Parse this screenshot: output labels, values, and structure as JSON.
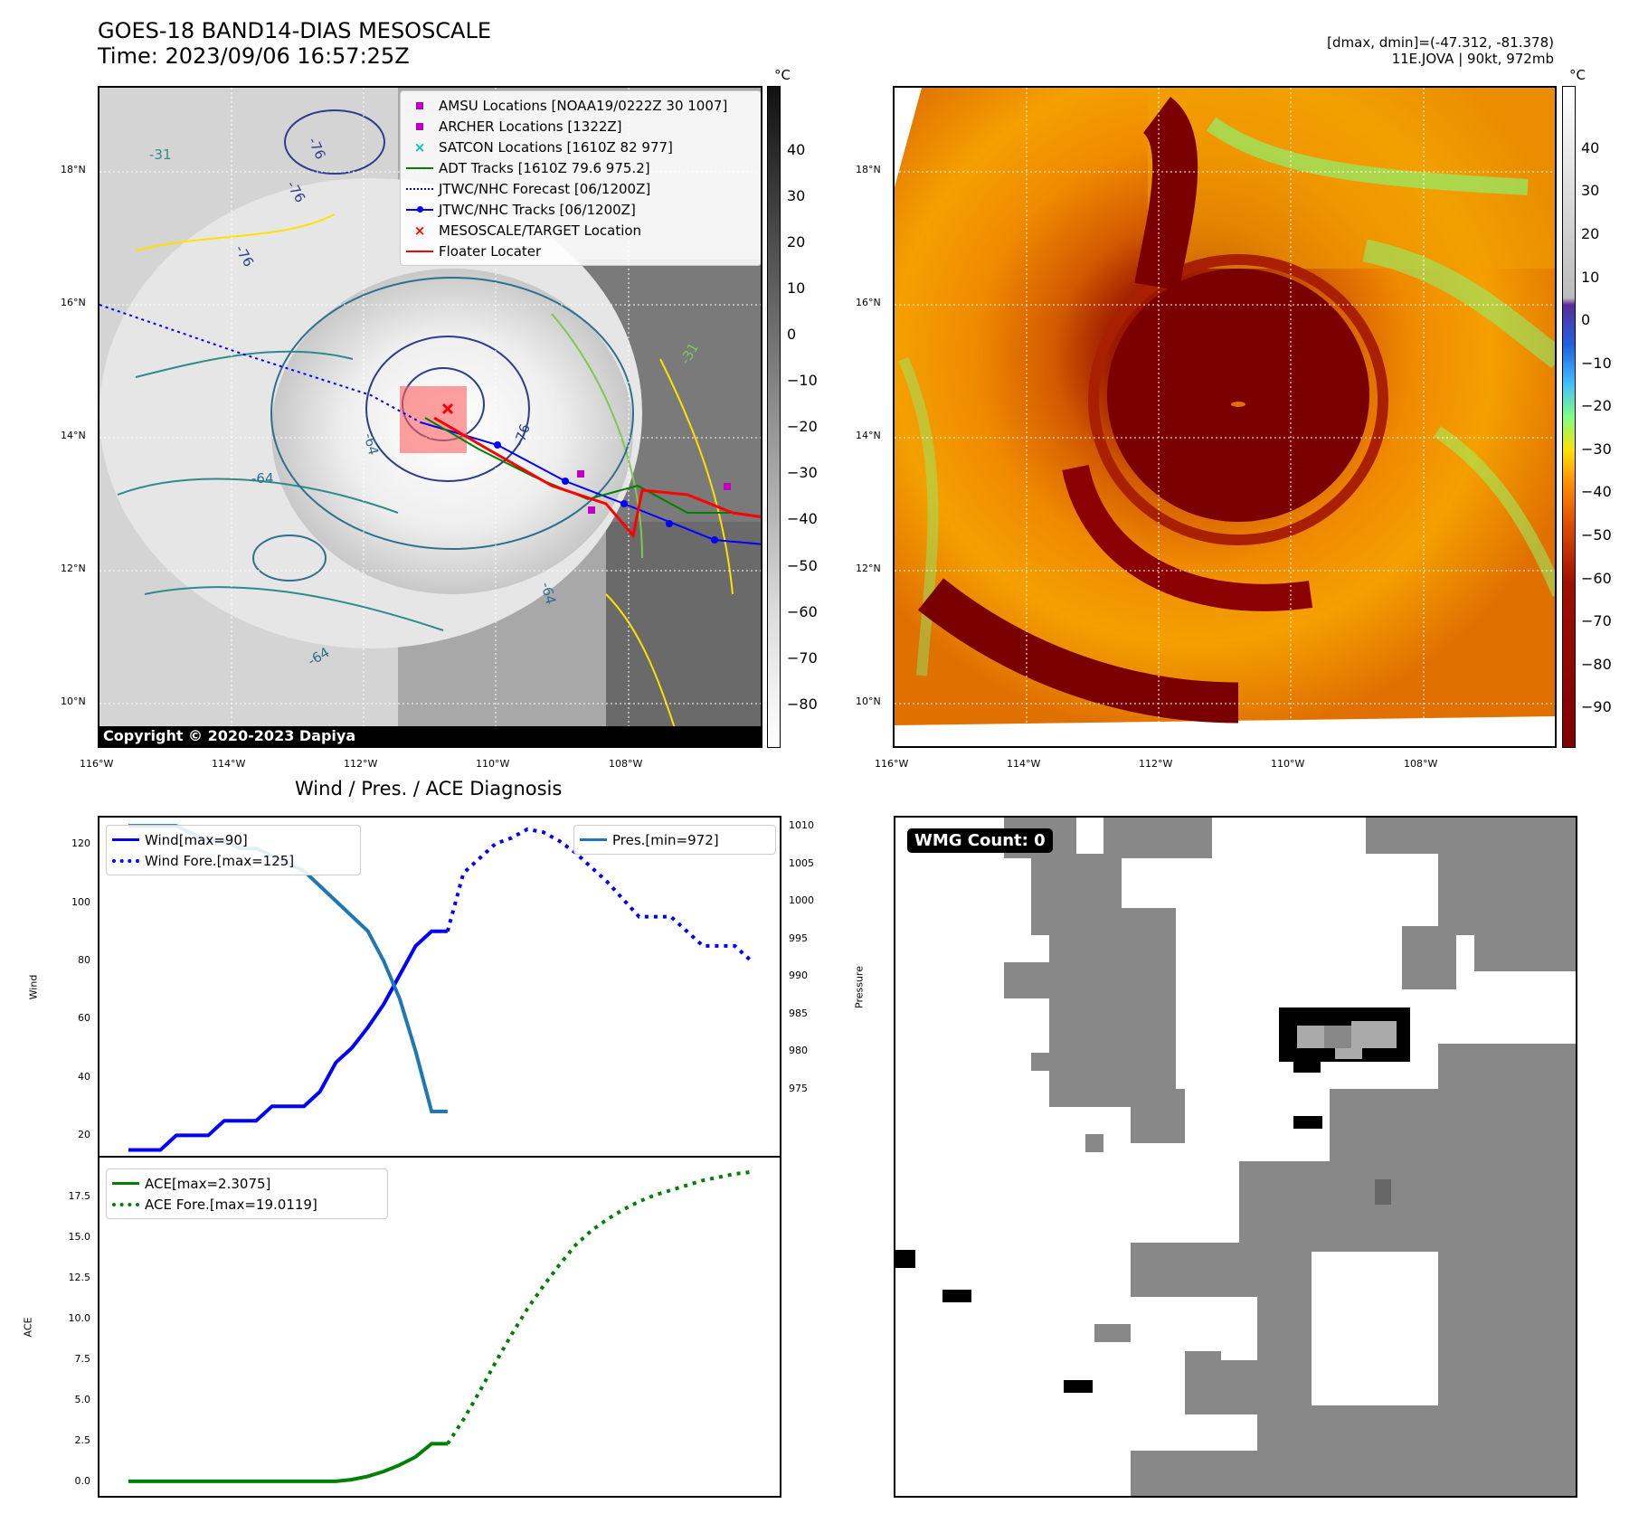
{
  "header": {
    "title_line1": "GOES-18 BAND14-DIAS MESOSCALE",
    "title_line2": "Time: 2023/09/06 16:57:25Z",
    "right_line1": "[dmax, dmin]=(-47.312, -81.378)",
    "right_line2": "11E.JOVA | 90kt, 972mb"
  },
  "map_axes": {
    "lat_labels": [
      "18°N",
      "16°N",
      "14°N",
      "12°N",
      "10°N"
    ],
    "lon_labels": [
      "116°W",
      "114°W",
      "112°W",
      "110°W",
      "108°W"
    ]
  },
  "colorbar_left": {
    "unit": "°C",
    "ticks": [
      "40",
      "30",
      "20",
      "10",
      "0",
      "−10",
      "−20",
      "−30",
      "−40",
      "−50",
      "−60",
      "−70",
      "−80"
    ]
  },
  "colorbar_right": {
    "unit": "°C",
    "ticks": [
      "40",
      "30",
      "20",
      "10",
      "0",
      "−10",
      "−20",
      "−30",
      "−40",
      "−50",
      "−60",
      "−70",
      "−80",
      "−90"
    ]
  },
  "legend_track": [
    {
      "label": "AMSU Locations [NOAA19/0222Z 30 1007]",
      "symbol": "square",
      "color": "#c000c0"
    },
    {
      "label": "ARCHER Locations [1322Z]",
      "symbol": "square",
      "color": "#c000c0"
    },
    {
      "label": "SATCON Locations [1610Z 82 977]",
      "symbol": "x",
      "color": "#00c0c0"
    },
    {
      "label": "ADT Tracks [1610Z 79.6 975.2]",
      "symbol": "line",
      "color": "#008000"
    },
    {
      "label": "JTWC/NHC Forecast [06/1200Z]",
      "symbol": "dotted",
      "color": "#0000ff"
    },
    {
      "label": "JTWC/NHC Tracks [06/1200Z]",
      "symbol": "line-dot",
      "color": "#0000ff"
    },
    {
      "label": "MESOSCALE/TARGET Location",
      "symbol": "x",
      "color": "#ff0000"
    },
    {
      "label": "Floater Locater",
      "symbol": "line",
      "color": "#ff0000"
    }
  ],
  "copyright": "Copyright © 2020-2023 Dapiya",
  "contour_labels": [
    "-76",
    "-76",
    "-31",
    "-76",
    "-64",
    "-64",
    "-76",
    "-64",
    "-64",
    "-31"
  ],
  "diag_title": "Wind / Pres. / ACE Diagnosis",
  "wmg_label": "WMG Count: 0",
  "colors": {
    "wind": "#0000ff",
    "pres": "#1f77b4",
    "ace": "#008000"
  },
  "chart_data": [
    {
      "type": "line",
      "title": "Wind / Pres. / ACE Diagnosis",
      "ylabel": "Wind",
      "y2label": "Pressure",
      "ylim": [
        13,
        129
      ],
      "y2lim": [
        966.1,
        1011.1
      ],
      "yticks": [
        20,
        40,
        60,
        80,
        100,
        120
      ],
      "y2ticks": [
        975,
        980,
        985,
        990,
        995,
        1000,
        1005,
        1010
      ],
      "series": [
        {
          "name": "Wind[max=90]",
          "axis": "left",
          "style": "solid",
          "color": "#0000ff",
          "x": [
            0,
            1,
            2,
            3,
            4,
            5,
            6,
            7,
            8,
            9,
            10,
            11,
            12,
            13,
            14,
            15,
            16,
            17,
            18,
            19,
            20
          ],
          "values": [
            15,
            15,
            15,
            20,
            20,
            20,
            25,
            25,
            25,
            30,
            30,
            30,
            35,
            45,
            50,
            57,
            65,
            75,
            85,
            90,
            90
          ]
        },
        {
          "name": "Wind Fore.[max=125]",
          "axis": "left",
          "style": "dotted",
          "color": "#0000ff",
          "x": [
            20,
            21,
            22,
            23,
            24,
            25,
            26,
            27,
            28,
            29,
            30,
            31,
            32,
            33,
            34,
            35,
            36,
            37,
            38,
            39
          ],
          "values": [
            90,
            110,
            115,
            120,
            122,
            125,
            124,
            121,
            117,
            112,
            107,
            101,
            95,
            95,
            95,
            90,
            85,
            85,
            85,
            80
          ]
        },
        {
          "name": "Pres.[min=972]",
          "axis": "right",
          "style": "solid",
          "color": "#1f77b4",
          "x": [
            0,
            1,
            2,
            3,
            4,
            5,
            6,
            7,
            8,
            9,
            10,
            11,
            12,
            13,
            14,
            15,
            16,
            17,
            18,
            19,
            20
          ],
          "values": [
            1010,
            1010,
            1010,
            1010,
            1009,
            1008,
            1008,
            1007,
            1007,
            1006,
            1005,
            1004,
            1002,
            1000,
            998,
            996,
            992,
            987,
            980,
            972,
            972
          ]
        }
      ]
    },
    {
      "type": "line",
      "ylabel": "ACE",
      "ylim": [
        -0.9,
        19.9
      ],
      "yticks": [
        0.0,
        2.5,
        5.0,
        7.5,
        10.0,
        12.5,
        15.0,
        17.5
      ],
      "series": [
        {
          "name": "ACE[max=2.3075]",
          "style": "solid",
          "color": "#008000",
          "x": [
            0,
            1,
            2,
            3,
            4,
            5,
            6,
            7,
            8,
            9,
            10,
            11,
            12,
            13,
            14,
            15,
            16,
            17,
            18,
            19,
            20
          ],
          "values": [
            0,
            0,
            0,
            0,
            0,
            0,
            0,
            0,
            0,
            0,
            0,
            0,
            0,
            0,
            0.1,
            0.3,
            0.6,
            1.0,
            1.5,
            2.3075,
            2.3075
          ]
        },
        {
          "name": "ACE Fore.[max=19.0119]",
          "style": "dotted",
          "color": "#008000",
          "x": [
            20,
            21,
            22,
            23,
            24,
            25,
            26,
            27,
            28,
            29,
            30,
            31,
            32,
            33,
            34,
            35,
            36,
            37,
            38,
            39
          ],
          "values": [
            2.3,
            3.8,
            5.5,
            7.3,
            9.0,
            10.6,
            12.0,
            13.3,
            14.5,
            15.4,
            16.1,
            16.7,
            17.2,
            17.6,
            17.9,
            18.2,
            18.5,
            18.7,
            18.9,
            19.0119
          ]
        }
      ]
    }
  ]
}
